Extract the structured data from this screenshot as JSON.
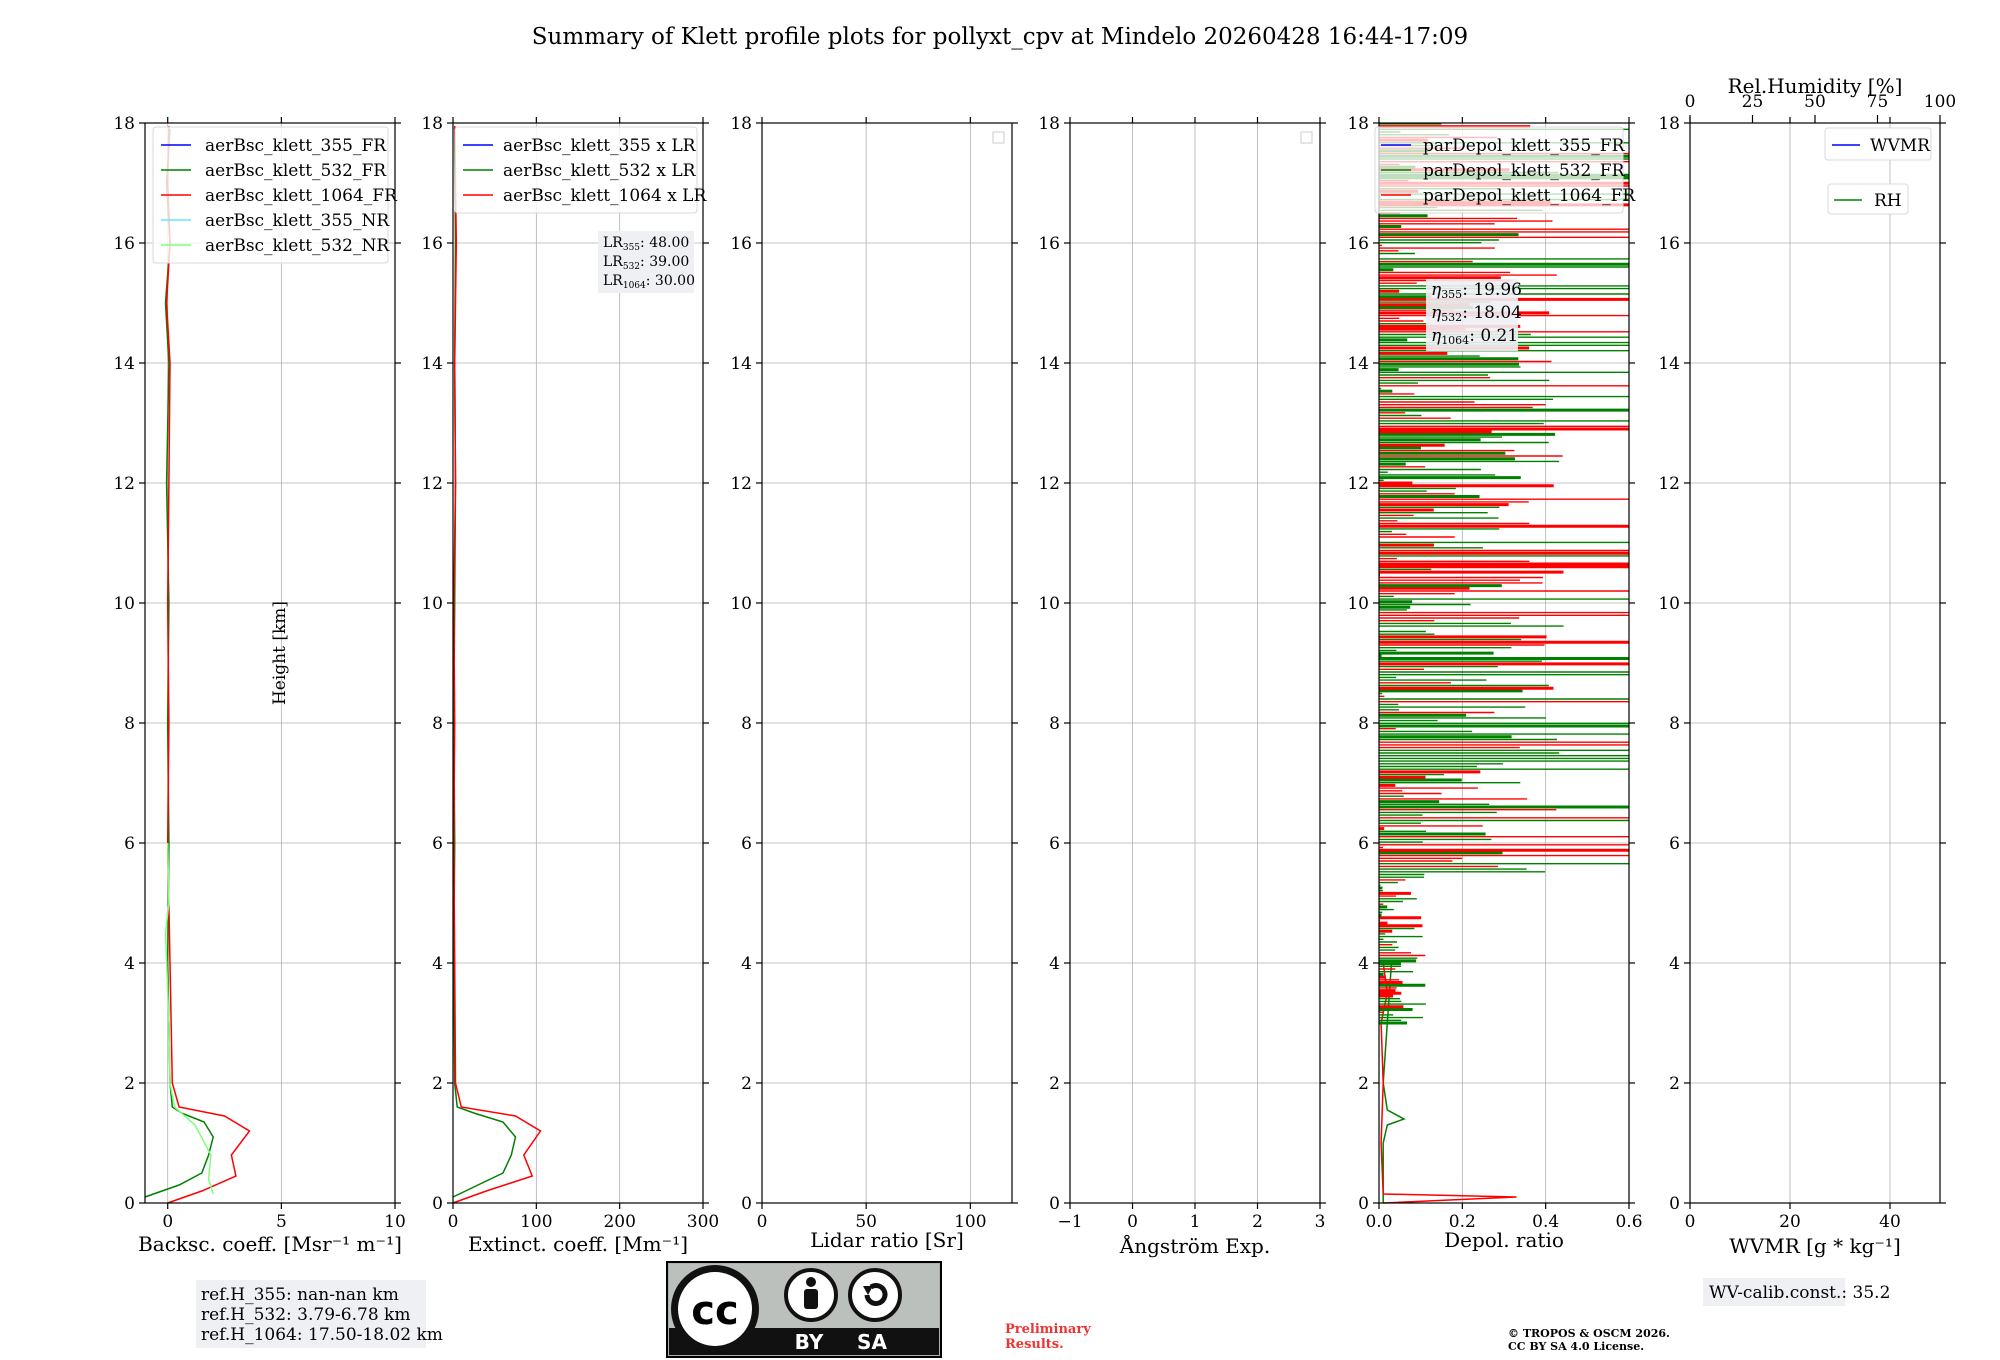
{
  "title": "Summary of Klett profile plots for pollyxt_cpv at Mindelo 20260428 16:44-17:09",
  "colors": {
    "c355": "#0000ff",
    "c532": "#008000",
    "c1064": "#ff0000",
    "c355nr": "#66e5ff",
    "c532nr": "#7fff7f",
    "grid": "#b0b0b0",
    "box": "#eef0f4",
    "note_red": "#ee3333"
  },
  "chart_data": [
    {
      "id": "backscatter",
      "type": "line",
      "xlabel": "Backsc. coeff. [Msr⁻¹ m⁻¹]",
      "ylabel": "Height [km]",
      "xlim": [
        -1,
        10
      ],
      "ylim": [
        0,
        18
      ],
      "xticks": [
        "0",
        "5",
        "10"
      ],
      "xtick_values": [
        0,
        5,
        10
      ],
      "yticks": [
        "0",
        "2",
        "4",
        "6",
        "8",
        "10",
        "12",
        "14",
        "16",
        "18"
      ],
      "legend": [
        "aerBsc_klett_355_FR",
        "aerBsc_klett_532_FR",
        "aerBsc_klett_1064_FR",
        "aerBsc_klett_355_NR",
        "aerBsc_klett_532_NR"
      ],
      "series": [
        {
          "name": "aerBsc_klett_532_FR",
          "color": "c532",
          "points": [
            [
              -1,
              0.1
            ],
            [
              0.5,
              0.3
            ],
            [
              1.5,
              0.5
            ],
            [
              1.8,
              0.8
            ],
            [
              2,
              1.1
            ],
            [
              1.6,
              1.35
            ],
            [
              0.6,
              1.5
            ],
            [
              0.2,
              1.6
            ],
            [
              0.1,
              2
            ],
            [
              0,
              4
            ],
            [
              0.05,
              6
            ],
            [
              0,
              8
            ],
            [
              0.05,
              10
            ],
            [
              -0.05,
              12
            ],
            [
              0.05,
              14
            ],
            [
              -0.1,
              15
            ],
            [
              0.1,
              16
            ],
            [
              -0.05,
              17
            ],
            [
              0.1,
              17.9
            ]
          ]
        },
        {
          "name": "aerBsc_klett_1064_FR",
          "color": "c1064",
          "points": [
            [
              0,
              0
            ],
            [
              1.5,
              0.2
            ],
            [
              3,
              0.45
            ],
            [
              2.8,
              0.8
            ],
            [
              3.6,
              1.2
            ],
            [
              2.5,
              1.45
            ],
            [
              0.5,
              1.6
            ],
            [
              0.2,
              2
            ],
            [
              0.1,
              4
            ],
            [
              0,
              6
            ],
            [
              0.05,
              8
            ],
            [
              0,
              10
            ],
            [
              0.05,
              12
            ],
            [
              0.1,
              14
            ],
            [
              -0.05,
              15
            ],
            [
              0.1,
              16
            ],
            [
              0,
              17
            ],
            [
              0.05,
              17.95
            ]
          ]
        },
        {
          "name": "aerBsc_klett_532_NR",
          "color": "c532nr",
          "points": [
            [
              2,
              0.15
            ],
            [
              1.8,
              0.4
            ],
            [
              1.9,
              0.8
            ],
            [
              1.2,
              1.3
            ],
            [
              0.3,
              1.6
            ],
            [
              0.1,
              2
            ],
            [
              0.05,
              3
            ],
            [
              -0.1,
              4.5
            ],
            [
              0.05,
              5
            ],
            [
              0,
              6
            ]
          ]
        }
      ]
    },
    {
      "id": "extinction",
      "type": "line",
      "xlabel": "Extinct. coeff. [Mm⁻¹]",
      "xlim": [
        0,
        300
      ],
      "ylim": [
        0,
        18
      ],
      "xticks": [
        "0",
        "100",
        "200",
        "300"
      ],
      "xtick_values": [
        0,
        100,
        200,
        300
      ],
      "yticks": [
        "0",
        "2",
        "4",
        "6",
        "8",
        "10",
        "12",
        "14",
        "16",
        "18"
      ],
      "legend": [
        "aerBsc_klett_355 x LR",
        "aerBsc_klett_532 x LR",
        "aerBsc_klett_1064 x LR"
      ],
      "lr_notes": [
        {
          "label": "LR",
          "sub": "355",
          "value": ": 48.00"
        },
        {
          "label": "LR",
          "sub": "532",
          "value": ": 39.00"
        },
        {
          "label": "LR",
          "sub": "1064",
          "value": ": 30.00"
        }
      ],
      "series": [
        {
          "name": "aerBsc_klett_532 x LR",
          "color": "c532",
          "points": [
            [
              0,
              0.1
            ],
            [
              30,
              0.3
            ],
            [
              60,
              0.5
            ],
            [
              70,
              0.8
            ],
            [
              75,
              1.1
            ],
            [
              60,
              1.35
            ],
            [
              25,
              1.5
            ],
            [
              5,
              1.6
            ],
            [
              2,
              2
            ],
            [
              1,
              4
            ],
            [
              2,
              6
            ],
            [
              1,
              8
            ],
            [
              2,
              10
            ],
            [
              3,
              12
            ],
            [
              2,
              14
            ],
            [
              3,
              16
            ],
            [
              2,
              17.9
            ]
          ]
        },
        {
          "name": "aerBsc_klett_1064 x LR",
          "color": "c1064",
          "points": [
            [
              0,
              0
            ],
            [
              40,
              0.2
            ],
            [
              95,
              0.45
            ],
            [
              85,
              0.8
            ],
            [
              105,
              1.2
            ],
            [
              75,
              1.45
            ],
            [
              10,
              1.6
            ],
            [
              3,
              2
            ],
            [
              2,
              4
            ],
            [
              1,
              6
            ],
            [
              2,
              8
            ],
            [
              1,
              10
            ],
            [
              3,
              12
            ],
            [
              2,
              14
            ],
            [
              4,
              16
            ],
            [
              2,
              17.95
            ]
          ]
        }
      ]
    },
    {
      "id": "lidar-ratio",
      "type": "line",
      "xlabel": "Lidar ratio [Sr]",
      "xlim": [
        0,
        120
      ],
      "ylim": [
        0,
        18
      ],
      "xticks": [
        "0",
        "50",
        "100"
      ],
      "xtick_values": [
        0,
        50,
        100
      ],
      "yticks": [
        "0",
        "2",
        "4",
        "6",
        "8",
        "10",
        "12",
        "14",
        "16",
        "18"
      ],
      "series": []
    },
    {
      "id": "angstrom",
      "type": "line",
      "xlabel": "Ångström Exp.",
      "xlim": [
        -1,
        3
      ],
      "ylim": [
        0,
        18
      ],
      "xticks": [
        "−1",
        "0",
        "1",
        "2",
        "3"
      ],
      "xtick_values": [
        -1,
        0,
        1,
        2,
        3
      ],
      "yticks": [
        "0",
        "2",
        "4",
        "6",
        "8",
        "10",
        "12",
        "14",
        "16",
        "18"
      ],
      "series": []
    },
    {
      "id": "depol",
      "type": "line",
      "xlabel": "Depol. ratio",
      "xlim": [
        0,
        0.6
      ],
      "ylim": [
        0,
        18
      ],
      "xticks": [
        "0.0",
        "0.2",
        "0.4",
        "0.6"
      ],
      "xtick_values": [
        0,
        0.2,
        0.4,
        0.6
      ],
      "yticks": [
        "0",
        "2",
        "4",
        "6",
        "8",
        "10",
        "12",
        "14",
        "16",
        "18"
      ],
      "legend": [
        "parDepol_klett_355_FR",
        "parDepol_klett_532_FR",
        "parDepol_klett_1064_FR"
      ],
      "eta_notes": [
        {
          "label": "η",
          "sub": "355",
          "value": ": 19.96"
        },
        {
          "label": "η",
          "sub": "532",
          "value": ": 18.04"
        },
        {
          "label": "η",
          "sub": "1064",
          "value": ": 0.21"
        }
      ],
      "series": [
        {
          "name": "parDepol_klett_532_FR",
          "color": "c532",
          "points": [
            [
              0.01,
              0
            ],
            [
              0.01,
              1
            ],
            [
              0.02,
              1.3
            ],
            [
              0.06,
              1.4
            ],
            [
              0.02,
              1.55
            ],
            [
              0.01,
              2
            ],
            [
              0.02,
              3
            ],
            [
              0.03,
              4
            ]
          ]
        },
        {
          "name": "parDepol_klett_1064_FR",
          "color": "c1064",
          "points": [
            [
              0.01,
              0
            ],
            [
              0.33,
              0.1
            ],
            [
              0.01,
              0.15
            ],
            [
              0.005,
              1
            ],
            [
              0.01,
              2
            ],
            [
              0.005,
              3
            ],
            [
              0.02,
              3.5
            ],
            [
              0.01,
              4
            ]
          ]
        }
      ]
    },
    {
      "id": "wvmr",
      "type": "line",
      "xlabel": "WVMR [g * kg⁻¹]",
      "top_label": "Rel.Humidity [%]",
      "xlim": [
        0,
        50
      ],
      "ylim": [
        0,
        18
      ],
      "xticks": [
        "0",
        "20",
        "40"
      ],
      "xtick_values": [
        0,
        20,
        40
      ],
      "top_ticks": [
        "0",
        "25",
        "50",
        "75",
        "100"
      ],
      "top_tick_values": [
        0,
        25,
        50,
        75,
        100
      ],
      "yticks": [
        "0",
        "2",
        "4",
        "6",
        "8",
        "10",
        "12",
        "14",
        "16",
        "18"
      ],
      "legend_wvmr": "WVMR",
      "legend_rh": "RH",
      "series": []
    }
  ],
  "ref_heights": [
    "ref.H_355: nan-nan km",
    "ref.H_532: 3.79-6.78 km",
    "ref.H_1064: 17.50-18.02 km"
  ],
  "wv_calib": "WV-calib.const.: 35.2",
  "license_badge": {
    "cc": "cc",
    "by": "BY",
    "sa": "SA"
  },
  "preliminary": [
    "Preliminary",
    "Results."
  ],
  "copyright": [
    "© TROPOS & OSCM 2026.",
    "CC BY SA 4.0 License."
  ]
}
